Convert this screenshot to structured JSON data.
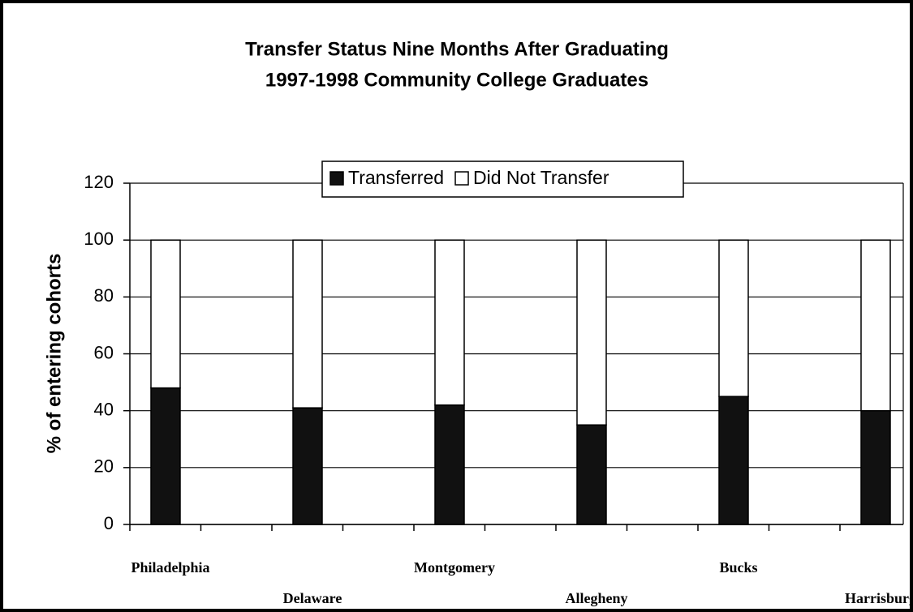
{
  "chart_data": {
    "type": "stacked_bar",
    "title": [
      "Transfer Status Nine Months After Graduating",
      "1997-1998 Community College Graduates"
    ],
    "y_label": "% of entering cohorts",
    "categories": [
      "Philadelphia",
      "Delaware",
      "Montgomery",
      "Allegheny",
      "Bucks",
      "Harrisburg"
    ],
    "series": [
      {
        "name": "Transferred",
        "color": "#111111",
        "values": [
          48,
          41,
          42,
          35,
          45,
          40
        ]
      },
      {
        "name": "Did Not Transfer",
        "color": "#ffffff",
        "values": [
          52,
          59,
          58,
          65,
          55,
          60
        ]
      }
    ],
    "ylim": [
      0,
      120
    ],
    "yticks": [
      0,
      20,
      40,
      60,
      80,
      100,
      120
    ],
    "grid": true,
    "legend": "top"
  }
}
